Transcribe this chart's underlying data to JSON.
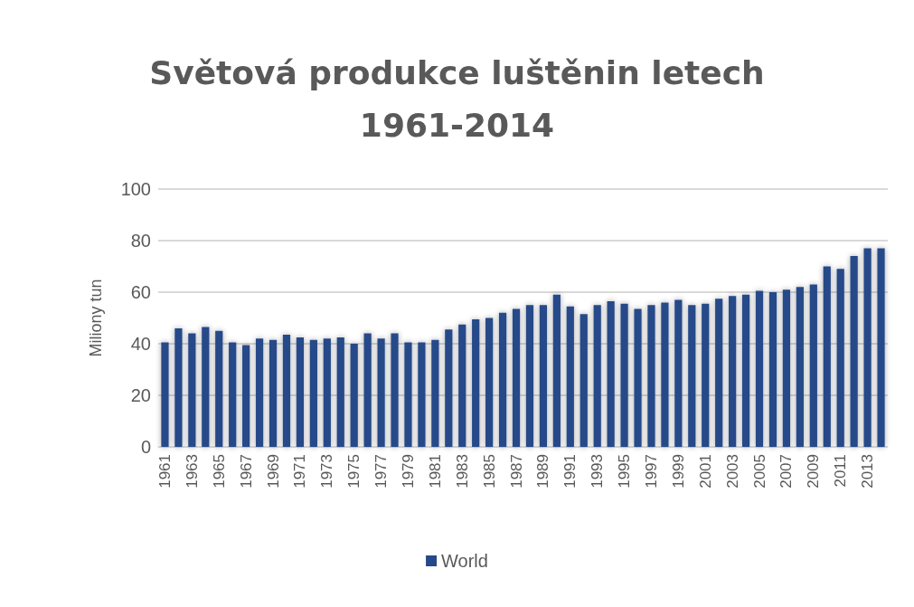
{
  "chart_data": {
    "type": "bar",
    "title": "Světová produkce luštěnin letech\n1961-2014",
    "ylabel": "Miliony tun",
    "categories": [
      "1961",
      null,
      "1963",
      null,
      "1965",
      null,
      "1967",
      null,
      "1969",
      null,
      "1971",
      null,
      "1973",
      null,
      "1975",
      null,
      "1977",
      null,
      "1979",
      null,
      "1981",
      null,
      "1983",
      null,
      "1985",
      null,
      "1987",
      null,
      "1989",
      null,
      "1991",
      null,
      "1993",
      null,
      "1995",
      null,
      "1997",
      null,
      "1999",
      null,
      "2001",
      null,
      "2003",
      null,
      "2005",
      null,
      "2007",
      null,
      "2009",
      null,
      "2011",
      null,
      "2013",
      null
    ],
    "series": [
      {
        "name": "World",
        "color": "#264989",
        "values": [
          40.5,
          46,
          44,
          46.5,
          45,
          40.5,
          39.5,
          42,
          41.5,
          43.5,
          42.5,
          41.5,
          42,
          42.5,
          40,
          44,
          42,
          44,
          40.5,
          40.5,
          41.5,
          45.5,
          47.5,
          49.5,
          50,
          52,
          53.5,
          55,
          55,
          59,
          54.5,
          51.5,
          55,
          56.5,
          55.5,
          53.5,
          55,
          56,
          57,
          55,
          55.5,
          57.5,
          58.5,
          59,
          60.5,
          60,
          61,
          62,
          63,
          70,
          69,
          74,
          77,
          77
        ]
      }
    ],
    "ylim": [
      0,
      100
    ],
    "yticks": [
      0,
      20,
      40,
      60,
      80,
      100
    ],
    "grid": "y",
    "legend": "bottom"
  }
}
